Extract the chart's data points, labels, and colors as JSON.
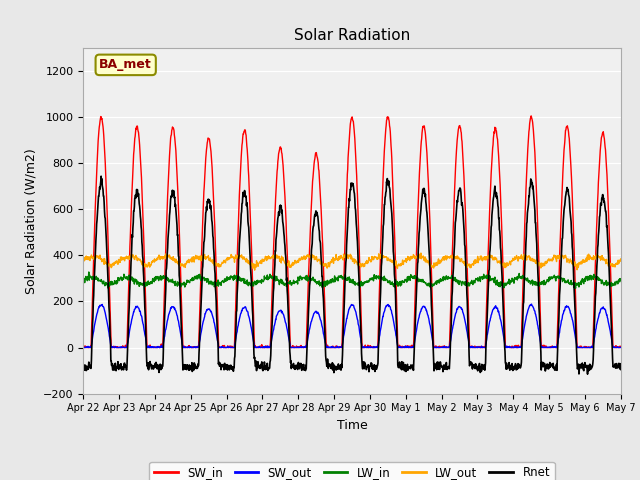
{
  "title": "Solar Radiation",
  "xlabel": "Time",
  "ylabel": "Solar Radiation (W/m2)",
  "ylim": [
    -200,
    1300
  ],
  "yticks": [
    -200,
    0,
    200,
    400,
    600,
    800,
    1000,
    1200
  ],
  "date_labels": [
    "Apr 22",
    "Apr 23",
    "Apr 24",
    "Apr 25",
    "Apr 26",
    "Apr 27",
    "Apr 28",
    "Apr 29",
    "Apr 30",
    "May 1",
    "May 2",
    "May 3",
    "May 4",
    "May 5",
    "May 6",
    "May 7"
  ],
  "annotation_text": "BA_met",
  "annotation_text_color": "#8B0000",
  "annotation_box_facecolor": "#FFFFCC",
  "annotation_box_edgecolor": "#8B8B00",
  "legend_entries": [
    "SW_in",
    "SW_out",
    "LW_in",
    "LW_out",
    "Rnet"
  ],
  "line_colors": [
    "red",
    "blue",
    "green",
    "orange",
    "black"
  ],
  "fig_facecolor": "#E8E8E8",
  "plot_facecolor": "#F0F0F0",
  "n_days": 15,
  "pts_per_day": 96,
  "SW_in_peaks": [
    1000,
    960,
    955,
    910,
    945,
    870,
    840,
    1000,
    1000,
    960,
    960,
    950,
    1000,
    960,
    930
  ],
  "line_widths": [
    1.0,
    1.0,
    1.0,
    1.0,
    1.2
  ]
}
